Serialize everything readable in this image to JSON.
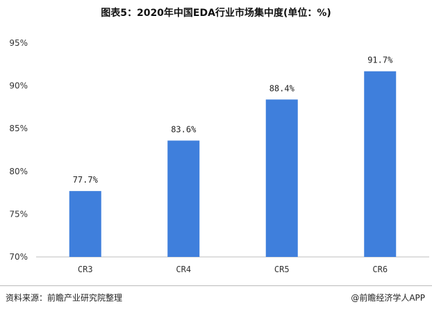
{
  "title": "图表5：2020年中国EDA行业市场集中度(单位：%)",
  "footer": {
    "source": "资料来源：前瞻产业研究院整理",
    "brand": "@前瞻经济学人APP"
  },
  "colors": {
    "bar": "#3f7fdc",
    "grid": "#d9d9d9",
    "axis": "#bfbfbf"
  },
  "chart_data": {
    "type": "bar",
    "categories": [
      "CR3",
      "CR4",
      "CR5",
      "CR6"
    ],
    "values": [
      77.7,
      83.6,
      88.4,
      91.7
    ],
    "data_labels": [
      "77.7%",
      "83.6%",
      "88.4%",
      "91.7%"
    ],
    "y_ticks": [
      "70%",
      "75%",
      "80%",
      "85%",
      "90%",
      "95%"
    ],
    "ylim": [
      70,
      95
    ],
    "grid": false,
    "title": "图表5：2020年中国EDA行业市场集中度(单位：%)"
  }
}
